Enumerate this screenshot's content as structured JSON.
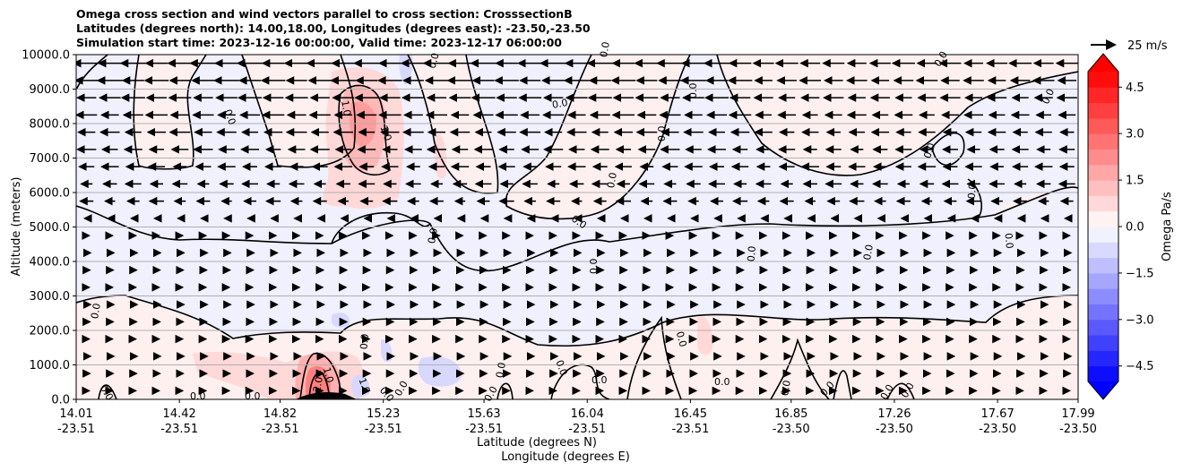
{
  "chart_data": {
    "type": "cross_section_contour",
    "title_lines": [
      "Omega cross section and wind vectors parallel to cross section: CrosssectionB",
      "Latitudes (degrees north): 14.00,18.00, Longitudes (degrees east): -23.50,-23.50",
      "Simulation start time: 2023-12-16 00:00:00, Valid time: 2023-12-17 06:00:00"
    ],
    "ylabel": "Altitude (meters)",
    "xlabel_lines": [
      "Latitude (degrees N)",
      "Longitude (degrees E)"
    ],
    "ylim": [
      0,
      10000
    ],
    "y_ticks": [
      0,
      1000,
      2000,
      3000,
      4000,
      5000,
      6000,
      7000,
      8000,
      9000,
      10000
    ],
    "y_tick_labels": [
      "0.0",
      "1000.0",
      "2000.0",
      "3000.0",
      "4000.0",
      "5000.0",
      "6000.0",
      "7000.0",
      "8000.0",
      "9000.0",
      "10000.0"
    ],
    "xlim": [
      14.01,
      17.99
    ],
    "x_ticks": [
      14.01,
      14.42,
      14.82,
      15.23,
      15.63,
      16.04,
      16.45,
      16.85,
      17.26,
      17.67,
      17.99
    ],
    "x_tick_labels_lat": [
      "14.01",
      "14.42",
      "14.82",
      "15.23",
      "15.63",
      "16.04",
      "16.45",
      "16.85",
      "17.26",
      "17.67",
      "17.99"
    ],
    "x_tick_labels_lon": [
      "-23.51",
      "-23.51",
      "-23.51",
      "-23.51",
      "-23.51",
      "-23.51",
      "-23.51",
      "-23.50",
      "-23.50",
      "-23.50",
      "-23.50"
    ],
    "grid": "horizontal",
    "colorbar": {
      "label": "Omega Pa/s",
      "range": [
        -5,
        5
      ],
      "levels": [
        -5.0,
        -4.5,
        -4.0,
        -3.5,
        -3.0,
        -2.5,
        -2.0,
        -1.5,
        -1.0,
        -0.5,
        0.0,
        0.5,
        1.0,
        1.5,
        2.0,
        2.5,
        3.0,
        3.5,
        4.0,
        4.5,
        5.0
      ],
      "tick_values": [
        -4.5,
        -3.0,
        -1.5,
        0.0,
        1.5,
        3.0,
        4.5
      ],
      "tick_labels": [
        "−4.5",
        "−3.0",
        "−1.5",
        "0.0",
        "1.5",
        "3.0",
        "4.5"
      ],
      "extend": "both",
      "colormap": "bwr"
    },
    "contour_levels": [
      0.0,
      1.0,
      2.0
    ],
    "contour_labels": [
      "0.0",
      "1.0",
      "2.0"
    ],
    "wind_reference": {
      "value": 25,
      "label": "25 m/s"
    },
    "wind_pattern": {
      "upper_levels": "strong westward (arrows pointing left) above about 5500 m",
      "lower_levels": "weak eastward (arrows pointing right) below about 5000 m"
    },
    "features": [
      {
        "type": "positive_omega",
        "lat_range": [
          15.0,
          15.25
        ],
        "alt_range": [
          5500,
          9000
        ],
        "max": 2.5
      },
      {
        "type": "positive_omega",
        "lat_range": [
          14.8,
          15.05
        ],
        "alt_range": [
          0,
          1200
        ],
        "max": 2.5
      },
      {
        "type": "positive_omega",
        "lat_range": [
          16.4,
          16.5
        ],
        "alt_range": [
          1200,
          2500
        ],
        "max": 1.0
      },
      {
        "type": "negative_omega",
        "lat_range": [
          15.3,
          15.6
        ],
        "alt_range": [
          300,
          1200
        ],
        "min": -1.0
      },
      {
        "type": "terrain",
        "lat_range": [
          14.92,
          15.15
        ],
        "max_alt": 200
      }
    ]
  }
}
